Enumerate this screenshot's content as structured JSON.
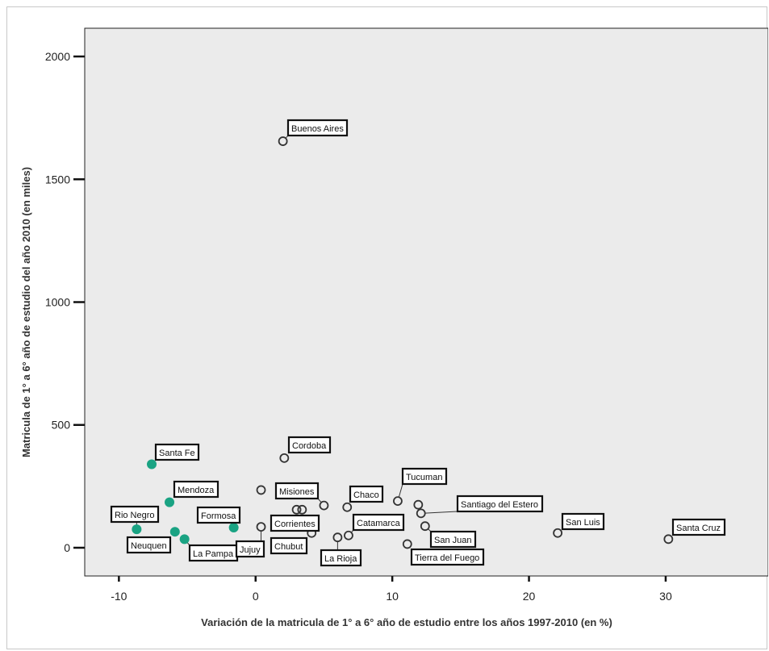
{
  "chart_data": {
    "type": "scatter",
    "title": "",
    "xlabel": "Variación de la matricula de 1° a 6° año de estudio entre los años 1997-2010 (en %)",
    "ylabel": "Matricula de 1° a 6° año de estudio del año 2010 (en miles)",
    "xlim": [
      -12.5,
      37.5
    ],
    "ylim": [
      -115,
      2115
    ],
    "x_ticks": [
      -10,
      0,
      10,
      20,
      30
    ],
    "y_ticks": [
      0,
      500,
      1000,
      1500,
      2000
    ],
    "x_tick_labels": [
      "-10",
      "0",
      "10",
      "20",
      "30"
    ],
    "y_tick_labels": [
      "0",
      "500",
      "1000",
      "1500",
      "2000"
    ],
    "grid": false,
    "colors": {
      "plot_background": "#ebebeb",
      "filled_marker": "#1aa383",
      "hollow_marker": "#333333",
      "label_border": "#111111"
    },
    "points": [
      {
        "label": "Buenos Aires",
        "x": 2.0,
        "y": 1655,
        "filled": false
      },
      {
        "label": "Cordoba",
        "x": 2.1,
        "y": 365,
        "filled": false
      },
      {
        "label": "Santa Fe",
        "x": -7.6,
        "y": 340,
        "filled": true
      },
      {
        "label": "Mendoza",
        "x": -6.3,
        "y": 185,
        "filled": true
      },
      {
        "label": "Rio Negro",
        "x": -8.7,
        "y": 75,
        "filled": true
      },
      {
        "label": "Neuquen",
        "x": -5.9,
        "y": 65,
        "filled": true
      },
      {
        "label": "La Pampa",
        "x": -5.2,
        "y": 35,
        "filled": true
      },
      {
        "label": "Formosa",
        "x": -1.6,
        "y": 82,
        "filled": true
      },
      {
        "label": "Jujuy",
        "x": 0.4,
        "y": 85,
        "filled": false
      },
      {
        "label": "",
        "x": 0.4,
        "y": 235,
        "filled": false
      },
      {
        "label": "Corrientes",
        "x": 3.0,
        "y": 155,
        "filled": false
      },
      {
        "label": "",
        "x": 3.4,
        "y": 155,
        "filled": false
      },
      {
        "label": "Misiones",
        "x": 5.0,
        "y": 172,
        "filled": false
      },
      {
        "label": "Chubut",
        "x": 4.1,
        "y": 60,
        "filled": false
      },
      {
        "label": "La Rioja",
        "x": 6.0,
        "y": 42,
        "filled": false
      },
      {
        "label": "Catamarca",
        "x": 6.8,
        "y": 50,
        "filled": false
      },
      {
        "label": "Chaco",
        "x": 6.7,
        "y": 165,
        "filled": false
      },
      {
        "label": "Tucuman",
        "x": 10.4,
        "y": 190,
        "filled": false
      },
      {
        "label": "",
        "x": 11.9,
        "y": 175,
        "filled": false
      },
      {
        "label": "Santiago del Estero",
        "x": 12.1,
        "y": 140,
        "filled": false
      },
      {
        "label": "San Juan",
        "x": 12.4,
        "y": 88,
        "filled": false
      },
      {
        "label": "Tierra del Fuego",
        "x": 11.1,
        "y": 15,
        "filled": false
      },
      {
        "label": "San Luis",
        "x": 22.1,
        "y": 60,
        "filled": false
      },
      {
        "label": "Santa Cruz",
        "x": 30.2,
        "y": 35,
        "filled": false
      }
    ]
  }
}
